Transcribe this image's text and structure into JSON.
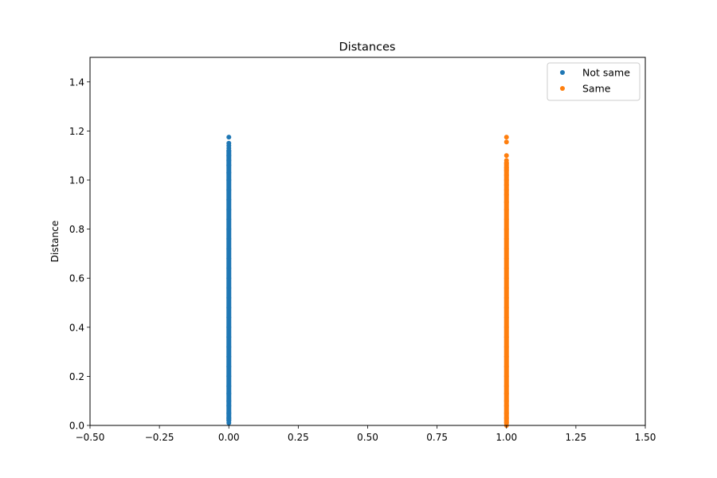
{
  "chart_data": {
    "type": "scatter",
    "title": "Distances",
    "xlabel": "",
    "ylabel": "Distance",
    "xlim": [
      -0.5,
      1.5
    ],
    "ylim": [
      0.0,
      1.5
    ],
    "xticks": [
      "−0.50",
      "−0.25",
      "0.00",
      "0.25",
      "0.50",
      "0.75",
      "1.00",
      "1.25",
      "1.50"
    ],
    "xtick_values": [
      -0.5,
      -0.25,
      0.0,
      0.25,
      0.5,
      0.75,
      1.0,
      1.25,
      1.5
    ],
    "yticks": [
      "0.0",
      "0.2",
      "0.4",
      "0.6",
      "0.8",
      "1.0",
      "1.2",
      "1.4"
    ],
    "ytick_values": [
      0.0,
      0.2,
      0.4,
      0.6,
      0.8,
      1.0,
      1.2,
      1.4
    ],
    "grid": false,
    "legend_position": "top-right",
    "series": [
      {
        "name": "Not same",
        "color": "#1f77b4",
        "x": 0,
        "y": [
          0.01,
          0.02,
          0.03,
          0.05,
          0.08,
          0.1,
          0.13,
          0.16,
          0.2,
          0.24,
          0.28,
          0.32,
          0.36,
          0.4,
          0.44,
          0.48,
          0.52,
          0.56,
          0.6,
          0.64,
          0.68,
          0.72,
          0.76,
          0.8,
          0.84,
          0.88,
          0.92,
          0.96,
          1.0,
          1.03,
          1.06,
          1.08,
          1.1,
          1.12,
          1.13,
          1.14,
          1.15,
          1.175
        ]
      },
      {
        "name": "Same",
        "color": "#ff7f0e",
        "x": 1,
        "y": [
          0.0,
          0.01,
          0.03,
          0.05,
          0.08,
          0.1,
          0.13,
          0.16,
          0.2,
          0.24,
          0.28,
          0.32,
          0.36,
          0.4,
          0.44,
          0.48,
          0.52,
          0.56,
          0.6,
          0.64,
          0.68,
          0.72,
          0.76,
          0.8,
          0.84,
          0.88,
          0.91,
          0.94,
          0.96,
          0.98,
          1.0,
          1.02,
          1.04,
          1.05,
          1.07,
          1.08,
          1.1,
          1.155,
          1.175
        ]
      }
    ]
  }
}
